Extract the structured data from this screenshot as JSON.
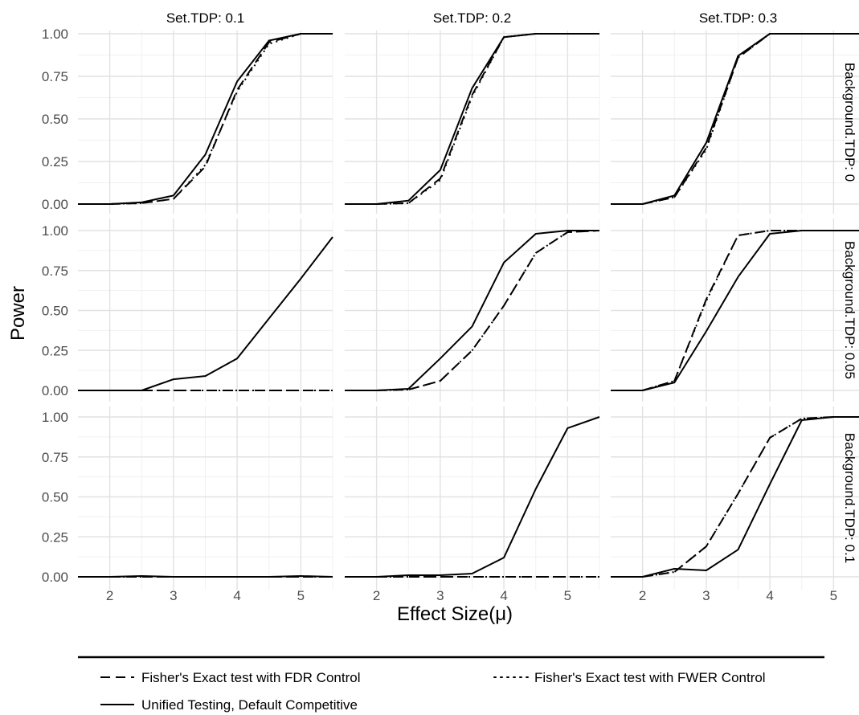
{
  "chart_data": {
    "type": "line",
    "x": [
      1.5,
      2,
      2.5,
      3,
      3.5,
      4,
      4.5,
      5,
      5.5
    ],
    "xlabel": "Effect Size(μ)",
    "ylabel": "Power",
    "xlim": [
      1.5,
      5.5
    ],
    "ylim": [
      0,
      1
    ],
    "xticks": [
      2,
      3,
      4,
      5
    ],
    "xtick_labels": [
      "2",
      "3",
      "4",
      "5"
    ],
    "yticks": [
      0,
      0.25,
      0.5,
      0.75,
      1
    ],
    "ytick_labels": [
      "0.00",
      "0.25",
      "0.50",
      "0.75",
      "1.00"
    ],
    "grid": true,
    "legend_position": "bottom",
    "legend": [
      {
        "label": "Fisher's Exact test with FDR Control",
        "dash": "dashed"
      },
      {
        "label": "Fisher's Exact test with FWER Control",
        "dash": "dotted"
      },
      {
        "label": "Unified Testing, Default Competitive",
        "dash": "solid"
      }
    ],
    "col_labels": [
      "Set.TDP: 0.1",
      "Set.TDP: 0.2",
      "Set.TDP: 0.3"
    ],
    "row_labels": [
      "Background.TDP: 0",
      "Background.TDP: 0.05",
      "Background.TDP: 0.1"
    ],
    "panels": [
      {
        "row": 0,
        "col": 0,
        "series": {
          "fdr": [
            0,
            0,
            0.005,
            0.03,
            0.22,
            0.67,
            0.95,
            1.0,
            1.0
          ],
          "fwer": [
            0,
            0,
            0.005,
            0.03,
            0.23,
            0.66,
            0.94,
            1.0,
            1.0
          ],
          "unified": [
            0,
            0,
            0.01,
            0.05,
            0.29,
            0.72,
            0.96,
            1.0,
            1.0
          ]
        }
      },
      {
        "row": 0,
        "col": 1,
        "series": {
          "fdr": [
            0,
            0,
            0.005,
            0.15,
            0.64,
            0.98,
            1.0,
            1.0,
            1.0
          ],
          "fwer": [
            0,
            0,
            0.005,
            0.14,
            0.63,
            0.98,
            1.0,
            1.0,
            1.0
          ],
          "unified": [
            0,
            0,
            0.02,
            0.2,
            0.68,
            0.98,
            1.0,
            1.0,
            1.0
          ]
        }
      },
      {
        "row": 0,
        "col": 2,
        "series": {
          "fdr": [
            0,
            0,
            0.04,
            0.33,
            0.86,
            1.0,
            1.0,
            1.0,
            1.0
          ],
          "fwer": [
            0,
            0,
            0.04,
            0.32,
            0.86,
            1.0,
            1.0,
            1.0,
            1.0
          ],
          "unified": [
            0,
            0,
            0.05,
            0.36,
            0.87,
            1.0,
            1.0,
            1.0,
            1.0
          ]
        }
      },
      {
        "row": 1,
        "col": 0,
        "series": {
          "fdr": [
            0,
            0,
            0,
            0,
            0,
            0,
            0,
            0,
            0
          ],
          "fwer": [
            0,
            0,
            0,
            0,
            0,
            0,
            0,
            0,
            0
          ],
          "unified": [
            0,
            0,
            0,
            0.07,
            0.09,
            0.2,
            0.45,
            0.7,
            0.96
          ]
        }
      },
      {
        "row": 1,
        "col": 1,
        "series": {
          "fdr": [
            0,
            0,
            0.005,
            0.06,
            0.25,
            0.53,
            0.86,
            0.99,
            1.0
          ],
          "fwer": [
            0,
            0,
            0.005,
            0.06,
            0.25,
            0.53,
            0.86,
            0.99,
            1.0
          ],
          "unified": [
            0,
            0,
            0.01,
            0.2,
            0.4,
            0.8,
            0.98,
            1.0,
            1.0
          ]
        }
      },
      {
        "row": 1,
        "col": 2,
        "series": {
          "fdr": [
            0,
            0,
            0.06,
            0.57,
            0.97,
            1.0,
            1.0,
            1.0,
            1.0
          ],
          "fwer": [
            0,
            0,
            0.06,
            0.56,
            0.97,
            1.0,
            1.0,
            1.0,
            1.0
          ],
          "unified": [
            0,
            0,
            0.05,
            0.37,
            0.71,
            0.98,
            1.0,
            1.0,
            1.0
          ]
        }
      },
      {
        "row": 2,
        "col": 0,
        "series": {
          "fdr": [
            0,
            0,
            0,
            0,
            0,
            0,
            0,
            0,
            0
          ],
          "fwer": [
            0,
            0,
            0,
            0,
            0,
            0,
            0,
            0,
            0
          ],
          "unified": [
            0,
            0,
            0.005,
            0,
            0,
            0,
            0,
            0.005,
            0
          ]
        }
      },
      {
        "row": 2,
        "col": 1,
        "series": {
          "fdr": [
            0,
            0,
            0,
            0,
            0,
            0,
            0,
            0,
            0
          ],
          "fwer": [
            0,
            0,
            0,
            0,
            0,
            0,
            0,
            0,
            0
          ],
          "unified": [
            0,
            0,
            0.01,
            0.01,
            0.02,
            0.12,
            0.55,
            0.93,
            1.0
          ]
        }
      },
      {
        "row": 2,
        "col": 2,
        "series": {
          "fdr": [
            0,
            0,
            0.03,
            0.19,
            0.52,
            0.87,
            0.99,
            1.0,
            1.0
          ],
          "fwer": [
            0,
            0,
            0.03,
            0.19,
            0.52,
            0.87,
            0.99,
            1.0,
            1.0
          ],
          "unified": [
            0,
            0,
            0.05,
            0.04,
            0.17,
            0.58,
            0.98,
            1.0,
            1.0
          ]
        }
      }
    ]
  }
}
